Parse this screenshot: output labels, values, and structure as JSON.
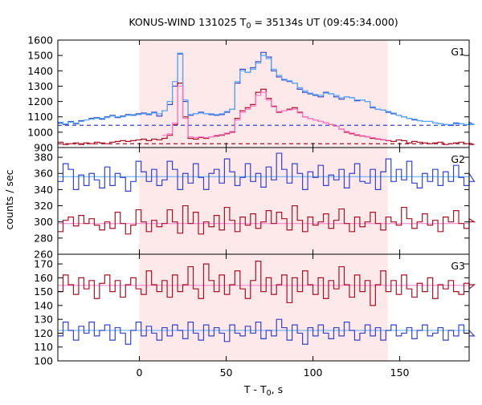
{
  "chart_data": {
    "type": "line",
    "title_prefix": "KONUS-WIND 131025 T",
    "title_subscript": "0",
    "title_suffix": " = 35134s UT (09:45:34.000)",
    "xlabel": "T - T",
    "xlabel_subscript": "0",
    "xlabel_suffix": ", s",
    "ylabel": "counts / sec",
    "xlim": [
      -47,
      190
    ],
    "x_ticks": [
      "0",
      "50",
      "100",
      "150"
    ],
    "x_tick_values": [
      0,
      50,
      100,
      150
    ],
    "shaded_interval": [
      0,
      143
    ],
    "shade_color": "#fde8ea",
    "colors": {
      "blue": "#3344cc",
      "red": "#aa1122",
      "lightblue": "#55aaff",
      "pink": "#ff77cc"
    },
    "panels": [
      {
        "label": "G1",
        "ylim": [
          900,
          1600
        ],
        "y_ticks": [
          900,
          1000,
          1100,
          1200,
          1300,
          1400,
          1500,
          1600
        ],
        "show_bottom_tick_label": true,
        "bin_width": 3,
        "x_start": -47,
        "dashed_levels": [
          {
            "value": 1045,
            "color": "blue"
          },
          {
            "value": 925,
            "color": "red"
          }
        ],
        "series": [
          {
            "color": "blue",
            "values": [
              1060,
              1050,
              1070,
              1055,
              1075,
              1080,
              1090,
              1095,
              1085,
              1100,
              1110,
              1095,
              1105,
              1115,
              1110,
              1120,
              1125,
              1115,
              1130,
              1105,
              1140,
              1180,
              1300,
              1510,
              1200,
              1110,
              1120,
              1130,
              1120,
              1115,
              1110,
              1115,
              1130,
              1150,
              1320,
              1410,
              1390,
              1420,
              1460,
              1520,
              1490,
              1400,
              1360,
              1340,
              1330,
              1320,
              1280,
              1260,
              1250,
              1240,
              1230,
              1260,
              1250,
              1230,
              1215,
              1230,
              1225,
              1205,
              1210,
              1200,
              1160,
              1150,
              1145,
              1130,
              1120,
              1110,
              1100,
              1090,
              1080,
              1075,
              1070,
              1070,
              1060,
              1055,
              1050,
              1045,
              1060,
              1055,
              1050,
              1065,
              1050
            ]
          },
          {
            "color": "red",
            "values": [
              935,
              920,
              925,
              930,
              920,
              930,
              925,
              935,
              930,
              925,
              935,
              940,
              945,
              940,
              945,
              950,
              955,
              945,
              955,
              950,
              960,
              980,
              1050,
              1320,
              1100,
              960,
              955,
              965,
              960,
              970,
              975,
              980,
              990,
              1000,
              1090,
              1140,
              1160,
              1180,
              1260,
              1280,
              1220,
              1170,
              1130,
              1140,
              1150,
              1160,
              1130,
              1100,
              1090,
              1080,
              1070,
              1060,
              1050,
              1040,
              1020,
              1000,
              990,
              980,
              975,
              970,
              960,
              955,
              950,
              945,
              940,
              950,
              945,
              930,
              940,
              935,
              930,
              925,
              930,
              935,
              920,
              925,
              930,
              935,
              925,
              930,
              920
            ]
          },
          {
            "color": "lightblue",
            "values": [
              1065,
              1055,
              1065,
              1060,
              1070,
              1080,
              1085,
              1090,
              1090,
              1095,
              1105,
              1100,
              1100,
              1110,
              1115,
              1115,
              1120,
              1120,
              1125,
              1120,
              1140,
              1200,
              1330,
              1515,
              1210,
              1115,
              1120,
              1125,
              1120,
              1120,
              1115,
              1120,
              1135,
              1150,
              1330,
              1400,
              1390,
              1410,
              1450,
              1500,
              1480,
              1410,
              1370,
              1345,
              1335,
              1320,
              1290,
              1270,
              1255,
              1245,
              1240,
              1255,
              1250,
              1240,
              1225,
              1230,
              1225,
              1210,
              1210,
              1200,
              1165,
              1150,
              1145,
              1135,
              1125,
              1110,
              1100,
              1090,
              1085,
              1075,
              1070,
              1070,
              1060,
              1055,
              1050,
              1050,
              1055,
              1055,
              1050,
              1060,
              1050
            ]
          },
          {
            "color": "pink",
            "values": [
              null,
              null,
              null,
              null,
              null,
              null,
              null,
              null,
              null,
              null,
              null,
              null,
              null,
              null,
              null,
              null,
              null,
              null,
              null,
              null,
              980,
              990,
              1060,
              1300,
              1090,
              970,
              965,
              970,
              965,
              970,
              980,
              985,
              995,
              1005,
              1080,
              1130,
              1150,
              1170,
              1240,
              1260,
              1210,
              1165,
              1135,
              1140,
              1145,
              1150,
              1125,
              1100,
              1090,
              1080,
              1070,
              1060,
              1050,
              1040,
              1020,
              1005,
              995,
              985,
              978,
              972,
              965,
              958,
              952,
              948,
              null,
              null,
              null,
              null,
              null,
              null,
              null,
              null,
              null,
              null,
              null,
              null,
              null,
              null,
              null,
              null,
              null
            ]
          }
        ]
      },
      {
        "label": "G2",
        "ylim": [
          260,
          392
        ],
        "y_ticks": [
          260,
          280,
          300,
          320,
          340,
          360,
          380
        ],
        "show_bottom_tick_label": true,
        "bin_width": 3,
        "x_start": -47,
        "solid_levels": [
          {
            "value": 356,
            "color": "lightblue"
          },
          {
            "value": 298,
            "color": "pink"
          }
        ],
        "series": [
          {
            "color": "blue",
            "values": [
              350,
              372,
              365,
              340,
              358,
              345,
              360,
              352,
              342,
              368,
              345,
              360,
              355,
              338,
              350,
              375,
              362,
              350,
              365,
              345,
              352,
              375,
              365,
              340,
              360,
              348,
              372,
              355,
              340,
              360,
              365,
              348,
              378,
              362,
              345,
              355,
              372,
              350,
              360,
              343,
              368,
              352,
              385,
              365,
              348,
              372,
              360,
              340,
              362,
              355,
              370,
              345,
              358,
              352,
              365,
              342,
              360,
              372,
              350,
              348,
              365,
              340,
              362,
              378,
              350,
              365,
              352,
              375,
              348,
              342,
              360,
              350,
              365,
              345,
              362,
              350,
              370,
              355,
              345,
              360,
              350
            ]
          },
          {
            "color": "red",
            "values": [
              288,
              302,
              306,
              295,
              308,
              298,
              304,
              296,
              290,
              300,
              292,
              312,
              298,
              285,
              296,
              315,
              300,
              288,
              302,
              294,
              298,
              315,
              300,
              286,
              320,
              298,
              312,
              285,
              300,
              294,
              308,
              290,
              318,
              302,
              288,
              306,
              296,
              310,
              292,
              300,
              314,
              298,
              312,
              304,
              290,
              320,
              302,
              288,
              306,
              296,
              300,
              310,
              292,
              302,
              316,
              298,
              288,
              306,
              294,
              300,
              312,
              298,
              290,
              306,
              300,
              296,
              318,
              304,
              292,
              300,
              310,
              296,
              302,
              288,
              306,
              300,
              314,
              298,
              292,
              304,
              300
            ]
          }
        ]
      },
      {
        "label": "G3",
        "ylim": [
          100,
          177
        ],
        "y_ticks": [
          100,
          110,
          120,
          130,
          140,
          150,
          160,
          170
        ],
        "show_bottom_tick_label": true,
        "bin_width": 3,
        "x_start": -47,
        "solid_levels": [
          {
            "value": 154.5,
            "color": "pink"
          },
          {
            "value": 122,
            "color": "lightblue"
          }
        ],
        "series": [
          {
            "color": "red",
            "values": [
              150,
              162,
              155,
              148,
              160,
              152,
              158,
              145,
              156,
              162,
              150,
              158,
              146,
              155,
              160,
              152,
              148,
              165,
              155,
              150,
              158,
              146,
              162,
              150,
              155,
              168,
              152,
              145,
              170,
              158,
              150,
              162,
              148,
              155,
              165,
              152,
              145,
              158,
              172,
              150,
              160,
              148,
              155,
              162,
              142,
              160,
              150,
              165,
              155,
              148,
              160,
              145,
              158,
              152,
              168,
              155,
              146,
              162,
              150,
              158,
              140,
              155,
              165,
              150,
              158,
              148,
              162,
              152,
              146,
              156,
              150,
              160,
              145,
              155,
              152,
              158,
              150,
              148,
              156,
              152,
              155
            ]
          },
          {
            "color": "blue",
            "values": [
              118,
              128,
              122,
              115,
              125,
              120,
              128,
              118,
              122,
              126,
              115,
              124,
              120,
              112,
              122,
              128,
              118,
              125,
              120,
              115,
              124,
              118,
              126,
              122,
              116,
              128,
              120,
              115,
              126,
              118,
              124,
              120,
              114,
              126,
              120,
              118,
              125,
              120,
              128,
              116,
              122,
              118,
              130,
              124,
              115,
              126,
              120,
              112,
              124,
              118,
              126,
              120,
              116,
              124,
              118,
              128,
              122,
              115,
              120,
              126,
              118,
              124,
              115,
              122,
              126,
              118,
              120,
              124,
              116,
              122,
              126,
              118,
              120,
              124,
              115,
              122,
              118,
              126,
              120,
              122,
              118
            ]
          }
        ]
      }
    ]
  }
}
